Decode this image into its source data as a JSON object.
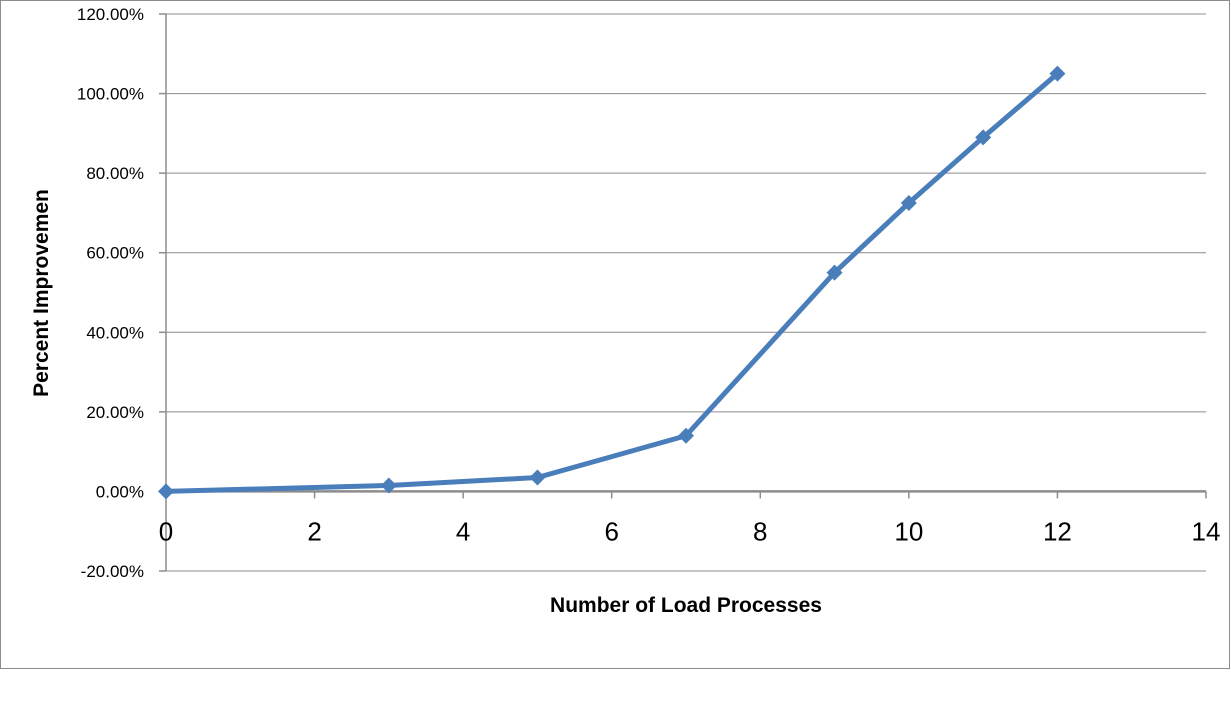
{
  "chart_data": {
    "type": "scatter",
    "title": "",
    "xlabel": "Number of Load Processes",
    "ylabel": "Percent Improvemen",
    "xlim": [
      0,
      14
    ],
    "ylim": [
      -0.2,
      1.2
    ],
    "x_ticks": [
      0,
      2,
      4,
      6,
      8,
      10,
      12,
      14
    ],
    "x_tick_labels": [
      "0",
      "2",
      "4",
      "6",
      "8",
      "10",
      "12",
      "14"
    ],
    "y_ticks": [
      -0.2,
      0,
      0.2,
      0.4,
      0.6,
      0.8,
      1.0,
      1.2
    ],
    "y_tick_labels": [
      "-20.00%",
      "0.00%",
      "20.00%",
      "40.00%",
      "60.00%",
      "80.00%",
      "100.00%",
      "120.00%"
    ],
    "grid": "horizontal",
    "legend": "none",
    "marker": "diamond",
    "line_style": "solid",
    "series": [
      {
        "x": [
          0,
          3,
          5,
          7,
          9,
          10,
          11,
          12
        ],
        "y": [
          0.0,
          0.015,
          0.035,
          0.14,
          0.55,
          0.725,
          0.89,
          1.05
        ],
        "color": "#4a7ebb"
      }
    ]
  }
}
